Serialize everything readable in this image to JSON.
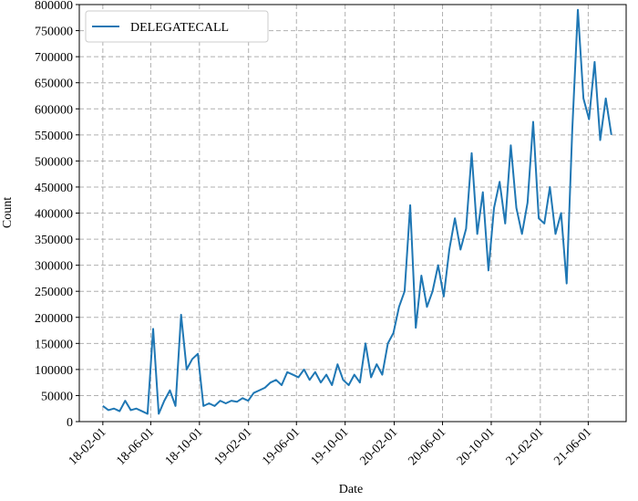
{
  "chart_data": {
    "type": "line",
    "x_label": "Date",
    "y_label": "Count",
    "x": [
      "2018-02-01",
      "2018-02-15",
      "2018-03-01",
      "2018-03-15",
      "2018-03-29",
      "2018-04-12",
      "2018-04-26",
      "2018-05-10",
      "2018-05-24",
      "2018-06-07",
      "2018-06-21",
      "2018-07-05",
      "2018-07-19",
      "2018-08-02",
      "2018-08-16",
      "2018-08-30",
      "2018-09-13",
      "2018-09-27",
      "2018-10-11",
      "2018-10-25",
      "2018-11-08",
      "2018-11-22",
      "2018-12-06",
      "2018-12-20",
      "2019-01-03",
      "2019-01-17",
      "2019-01-31",
      "2019-02-14",
      "2019-02-28",
      "2019-03-14",
      "2019-03-28",
      "2019-04-11",
      "2019-04-25",
      "2019-05-09",
      "2019-05-23",
      "2019-06-06",
      "2019-06-20",
      "2019-07-04",
      "2019-07-18",
      "2019-08-01",
      "2019-08-15",
      "2019-08-29",
      "2019-09-12",
      "2019-09-26",
      "2019-10-10",
      "2019-10-24",
      "2019-11-07",
      "2019-11-21",
      "2019-12-05",
      "2019-12-19",
      "2020-01-02",
      "2020-01-16",
      "2020-01-30",
      "2020-02-13",
      "2020-02-27",
      "2020-03-12",
      "2020-03-26",
      "2020-04-09",
      "2020-04-23",
      "2020-05-07",
      "2020-05-21",
      "2020-06-04",
      "2020-06-18",
      "2020-07-02",
      "2020-07-16",
      "2020-07-30",
      "2020-08-13",
      "2020-08-27",
      "2020-09-10",
      "2020-09-24",
      "2020-10-08",
      "2020-10-22",
      "2020-11-05",
      "2020-11-19",
      "2020-12-03",
      "2020-12-17",
      "2020-12-31",
      "2021-01-14",
      "2021-01-28",
      "2021-02-11",
      "2021-02-25",
      "2021-03-11",
      "2021-03-25",
      "2021-04-08",
      "2021-04-22",
      "2021-05-06",
      "2021-05-20",
      "2021-06-03",
      "2021-06-17",
      "2021-07-01",
      "2021-07-15",
      "2021-07-29"
    ],
    "series": [
      {
        "name": "DELEGATECALL",
        "color": "#1f77b4",
        "values": [
          30000,
          22000,
          25000,
          20000,
          40000,
          22000,
          25000,
          20000,
          15000,
          178000,
          15000,
          40000,
          60000,
          30000,
          205000,
          100000,
          120000,
          130000,
          30000,
          35000,
          30000,
          40000,
          35000,
          40000,
          38000,
          45000,
          40000,
          55000,
          60000,
          65000,
          75000,
          80000,
          70000,
          95000,
          90000,
          85000,
          100000,
          80000,
          95000,
          75000,
          90000,
          70000,
          110000,
          80000,
          70000,
          90000,
          75000,
          150000,
          85000,
          110000,
          90000,
          150000,
          170000,
          220000,
          250000,
          415000,
          180000,
          280000,
          220000,
          250000,
          300000,
          240000,
          330000,
          390000,
          330000,
          370000,
          515000,
          360000,
          440000,
          290000,
          410000,
          460000,
          380000,
          530000,
          410000,
          360000,
          420000,
          575000,
          390000,
          380000,
          450000,
          360000,
          400000,
          265000,
          560000,
          790000,
          620000,
          580000,
          690000,
          540000,
          620000,
          550000
        ]
      }
    ],
    "xlim": [
      "2017-12-04",
      "2021-09-04"
    ],
    "xticks": [
      {
        "value": "2018-02-01",
        "label": "18-02-01"
      },
      {
        "value": "2018-06-01",
        "label": "18-06-01"
      },
      {
        "value": "2018-10-01",
        "label": "18-10-01"
      },
      {
        "value": "2019-02-01",
        "label": "19-02-01"
      },
      {
        "value": "2019-06-01",
        "label": "19-06-01"
      },
      {
        "value": "2019-10-01",
        "label": "19-10-01"
      },
      {
        "value": "2020-02-01",
        "label": "20-02-01"
      },
      {
        "value": "2020-06-01",
        "label": "20-06-01"
      },
      {
        "value": "2020-10-01",
        "label": "20-10-01"
      },
      {
        "value": "2021-02-01",
        "label": "21-02-01"
      },
      {
        "value": "2021-06-01",
        "label": "21-06-01"
      }
    ],
    "ylim": [
      0,
      800000
    ],
    "yticks": [
      0,
      50000,
      100000,
      150000,
      200000,
      250000,
      300000,
      350000,
      400000,
      450000,
      500000,
      550000,
      600000,
      650000,
      700000,
      750000,
      800000
    ],
    "grid": true,
    "legend": "upper left"
  }
}
